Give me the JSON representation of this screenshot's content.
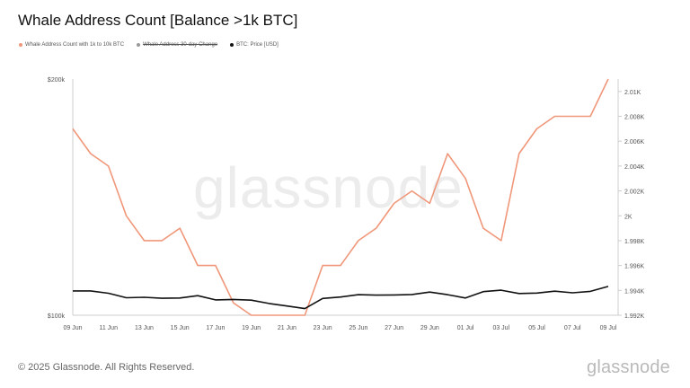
{
  "title": "Whale Address Count [Balance >1k BTC]",
  "legend": [
    {
      "label": "Whale Address Count with 1k to 10k BTC",
      "color": "#f0977a",
      "struck": false
    },
    {
      "label": "Whale Address 30-day Change",
      "color": "#999999",
      "struck": true
    },
    {
      "label": "BTC: Price [USD]",
      "color": "#111111",
      "struck": false
    }
  ],
  "watermark": "glassnode",
  "footer": "© 2025 Glassnode. All Rights Reserved.",
  "logo": "glassnode",
  "colors": {
    "whale": "#f0977a",
    "price": "#111111"
  },
  "chart_data": {
    "type": "line",
    "x": [
      "09 Jun",
      "10 Jun",
      "11 Jun",
      "12 Jun",
      "13 Jun",
      "14 Jun",
      "15 Jun",
      "16 Jun",
      "17 Jun",
      "18 Jun",
      "19 Jun",
      "20 Jun",
      "21 Jun",
      "22 Jun",
      "23 Jun",
      "24 Jun",
      "25 Jun",
      "26 Jun",
      "27 Jun",
      "28 Jun",
      "29 Jun",
      "30 Jun",
      "01 Jul",
      "02 Jul",
      "03 Jul",
      "04 Jul",
      "05 Jul",
      "06 Jul",
      "07 Jul",
      "08 Jul",
      "09 Jul"
    ],
    "x_tick_labels": [
      "09 Jun",
      "11 Jun",
      "13 Jun",
      "15 Jun",
      "17 Jun",
      "19 Jun",
      "21 Jun",
      "23 Jun",
      "25 Jun",
      "27 Jun",
      "29 Jun",
      "01 Jul",
      "03 Jul",
      "05 Jul",
      "07 Jul",
      "09 Jul"
    ],
    "series": [
      {
        "name": "Whale Address Count with 1k to 10k BTC",
        "axis": "right",
        "values": [
          2007,
          2005,
          2004,
          2000,
          1998,
          1998,
          1999,
          1996,
          1996,
          1993,
          1992,
          1992,
          1992,
          1992,
          1996,
          1996,
          1998,
          1999,
          2001,
          2002,
          2001,
          2005,
          2003,
          1999,
          1998,
          2005,
          2007,
          2008,
          2008,
          2008,
          2011
        ]
      },
      {
        "name": "BTC: Price [USD]",
        "axis": "left",
        "values": [
          110300,
          110300,
          109300,
          107400,
          107600,
          107200,
          107300,
          108300,
          106500,
          106700,
          106400,
          105000,
          103900,
          102800,
          107100,
          107700,
          108700,
          108500,
          108600,
          108800,
          109800,
          108700,
          107300,
          110000,
          110600,
          109200,
          109400,
          110200,
          109500,
          110100,
          112200
        ]
      }
    ],
    "y_left": {
      "min": 100000,
      "max": 200000,
      "tick_labels": [
        "$200k",
        "$100k"
      ]
    },
    "y_right": {
      "min": 1992,
      "max": 2011,
      "tick_labels": [
        "2.01K",
        "2.008K",
        "2.006K",
        "2.004K",
        "2.002K",
        "2K",
        "1.998K",
        "1.996K",
        "1.994K",
        "1.992K"
      ],
      "tick_values": [
        2010,
        2008,
        2006,
        2004,
        2002,
        2000,
        1998,
        1996,
        1994,
        1992
      ]
    },
    "grid": false
  }
}
